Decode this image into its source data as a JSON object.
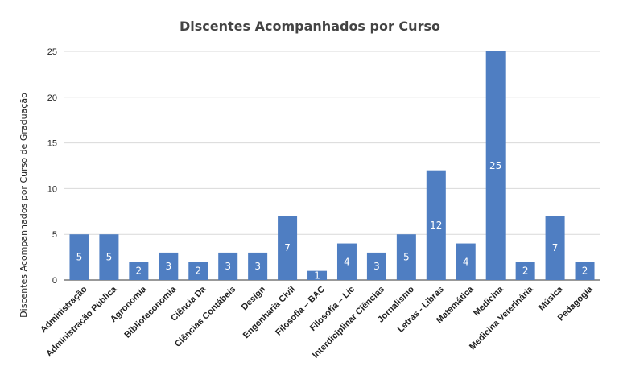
{
  "chart_data": {
    "type": "bar",
    "title": "Discentes Acompanhados por Curso",
    "xlabel": "",
    "ylabel": "Discentes Acompanhados por Curso de Graduação",
    "ylim": [
      0,
      25
    ],
    "yticks": [
      0,
      5,
      10,
      15,
      20,
      25
    ],
    "grid": true,
    "legend": "none",
    "color": "#4f7ec2",
    "categories": [
      "Administração",
      "Administração Pública",
      "Agronomia",
      "Biblioteconomia",
      "Ciência Da",
      "Ciências Contábeis",
      "Design",
      "Engenharia Civil",
      "Filosofia – BAC",
      "Filosofia – Lic",
      "Interdiciplinar Ciências",
      "Jornalismo",
      "Letras - Libras",
      "Matemática",
      "Medicina",
      "Medicina Veterinária",
      "Música",
      "Pedagogia"
    ],
    "values": [
      5,
      5,
      2,
      3,
      2,
      3,
      3,
      7,
      1,
      4,
      3,
      5,
      12,
      4,
      25,
      2,
      7,
      2
    ]
  }
}
